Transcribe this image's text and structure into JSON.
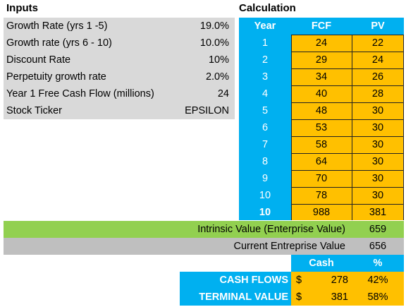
{
  "inputs": {
    "title": "Inputs",
    "rows": [
      {
        "label": "Growth Rate (yrs 1 -5)",
        "value": "19.0%"
      },
      {
        "label": "Growth rate (yrs 6 - 10)",
        "value": "10.0%"
      },
      {
        "label": "Discount Rate",
        "value": "10%"
      },
      {
        "label": "Perpetuity growth rate",
        "value": "2.0%"
      },
      {
        "label": "Year 1 Free Cash Flow (millions)",
        "value": "24"
      },
      {
        "label": "Stock Ticker",
        "value": "EPSILON"
      }
    ]
  },
  "calculation": {
    "title": "Calculation",
    "headers": {
      "year": "Year",
      "fcf": "FCF",
      "pv": "PV"
    },
    "rows": [
      {
        "year": "1",
        "fcf": "24",
        "pv": "22"
      },
      {
        "year": "2",
        "fcf": "29",
        "pv": "24"
      },
      {
        "year": "3",
        "fcf": "34",
        "pv": "26"
      },
      {
        "year": "4",
        "fcf": "40",
        "pv": "28"
      },
      {
        "year": "5",
        "fcf": "48",
        "pv": "30"
      },
      {
        "year": "6",
        "fcf": "53",
        "pv": "30"
      },
      {
        "year": "7",
        "fcf": "58",
        "pv": "30"
      },
      {
        "year": "8",
        "fcf": "64",
        "pv": "30"
      },
      {
        "year": "9",
        "fcf": "70",
        "pv": "30"
      },
      {
        "year": "10",
        "fcf": "78",
        "pv": "30"
      },
      {
        "year": "10",
        "fcf": "988",
        "pv": "381"
      }
    ]
  },
  "summary": {
    "intrinsic_label": "Intrinsic Value (Enterprise Value)",
    "intrinsic_value": "659",
    "current_label": "Current Entreprise Value",
    "current_value": "656"
  },
  "cash": {
    "headers": {
      "cash": "Cash",
      "pct": "%"
    },
    "rows": [
      {
        "label": "CASH FLOWS",
        "currency": "$",
        "amount": "278",
        "pct": "42%"
      },
      {
        "label": "TERMINAL VALUE",
        "currency": "$",
        "amount": "381",
        "pct": "58%"
      }
    ]
  },
  "colors": {
    "blue": "#00b0f0",
    "orange": "#ffc000",
    "green": "#92d050",
    "gray": "#d9d9d9",
    "dark_gray": "#bfbfbf"
  }
}
